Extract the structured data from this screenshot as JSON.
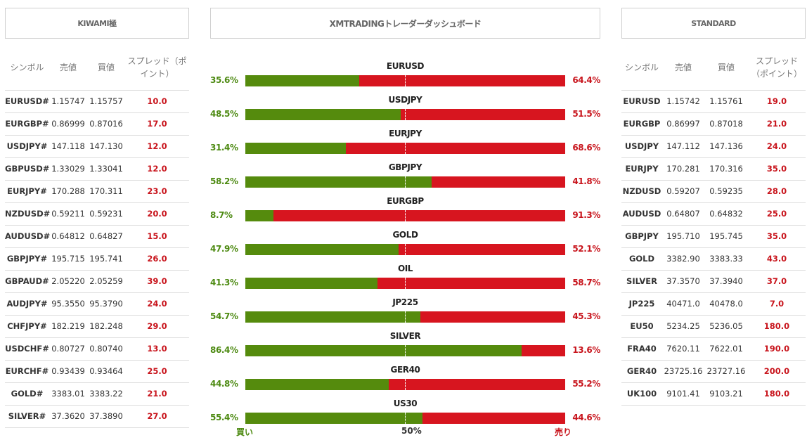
{
  "headers": {
    "left": "KIWAMI極",
    "center": "XMTRADINGトレーダーダッシュボード",
    "right": "STANDARD"
  },
  "kiwami": {
    "columns": [
      "シンボル",
      "売値",
      "買値",
      "スプレッド（ポイント）"
    ],
    "rows": [
      {
        "symbol": "EURUSD#",
        "bid": "1.15747",
        "ask": "1.15757",
        "spread": "10.0"
      },
      {
        "symbol": "EURGBP#",
        "bid": "0.86999",
        "ask": "0.87016",
        "spread": "17.0"
      },
      {
        "symbol": "USDJPY#",
        "bid": "147.118",
        "ask": "147.130",
        "spread": "12.0"
      },
      {
        "symbol": "GBPUSD#",
        "bid": "1.33029",
        "ask": "1.33041",
        "spread": "12.0"
      },
      {
        "symbol": "EURJPY#",
        "bid": "170.288",
        "ask": "170.311",
        "spread": "23.0"
      },
      {
        "symbol": "NZDUSD#",
        "bid": "0.59211",
        "ask": "0.59231",
        "spread": "20.0"
      },
      {
        "symbol": "AUDUSD#",
        "bid": "0.64812",
        "ask": "0.64827",
        "spread": "15.0"
      },
      {
        "symbol": "GBPJPY#",
        "bid": "195.715",
        "ask": "195.741",
        "spread": "26.0"
      },
      {
        "symbol": "GBPAUD#",
        "bid": "2.05220",
        "ask": "2.05259",
        "spread": "39.0"
      },
      {
        "symbol": "AUDJPY#",
        "bid": "95.3550",
        "ask": "95.3790",
        "spread": "24.0"
      },
      {
        "symbol": "CHFJPY#",
        "bid": "182.219",
        "ask": "182.248",
        "spread": "29.0"
      },
      {
        "symbol": "USDCHF#",
        "bid": "0.80727",
        "ask": "0.80740",
        "spread": "13.0"
      },
      {
        "symbol": "EURCHF#",
        "bid": "0.93439",
        "ask": "0.93464",
        "spread": "25.0"
      },
      {
        "symbol": "GOLD#",
        "bid": "3383.01",
        "ask": "3383.22",
        "spread": "21.0"
      },
      {
        "symbol": "SILVER#",
        "bid": "37.3620",
        "ask": "37.3890",
        "spread": "27.0"
      }
    ]
  },
  "standard": {
    "columns": [
      "シンボル",
      "売値",
      "買値",
      "スプレッド（ポイント）"
    ],
    "rows": [
      {
        "symbol": "EURUSD",
        "bid": "1.15742",
        "ask": "1.15761",
        "spread": "19.0"
      },
      {
        "symbol": "EURGBP",
        "bid": "0.86997",
        "ask": "0.87018",
        "spread": "21.0"
      },
      {
        "symbol": "USDJPY",
        "bid": "147.112",
        "ask": "147.136",
        "spread": "24.0"
      },
      {
        "symbol": "EURJPY",
        "bid": "170.281",
        "ask": "170.316",
        "spread": "35.0"
      },
      {
        "symbol": "NZDUSD",
        "bid": "0.59207",
        "ask": "0.59235",
        "spread": "28.0"
      },
      {
        "symbol": "AUDUSD",
        "bid": "0.64807",
        "ask": "0.64832",
        "spread": "25.0"
      },
      {
        "symbol": "GBPJPY",
        "bid": "195.710",
        "ask": "195.745",
        "spread": "35.0"
      },
      {
        "symbol": "GOLD",
        "bid": "3382.90",
        "ask": "3383.33",
        "spread": "43.0"
      },
      {
        "symbol": "SILVER",
        "bid": "37.3570",
        "ask": "37.3940",
        "spread": "37.0"
      },
      {
        "symbol": "JP225",
        "bid": "40471.0",
        "ask": "40478.0",
        "spread": "7.0"
      },
      {
        "symbol": "EU50",
        "bid": "5234.25",
        "ask": "5236.05",
        "spread": "180.0"
      },
      {
        "symbol": "FRA40",
        "bid": "7620.11",
        "ask": "7622.01",
        "spread": "190.0"
      },
      {
        "symbol": "GER40",
        "bid": "23725.16",
        "ask": "23727.16",
        "spread": "200.0"
      },
      {
        "symbol": "UK100",
        "bid": "9101.41",
        "ask": "9103.21",
        "spread": "180.0"
      }
    ]
  },
  "sentiment": [
    {
      "symbol": "EURUSD",
      "buy": "35.6%",
      "sell": "64.4%",
      "buy_value": 35.6
    },
    {
      "symbol": "USDJPY",
      "buy": "48.5%",
      "sell": "51.5%",
      "buy_value": 48.5
    },
    {
      "symbol": "EURJPY",
      "buy": "31.4%",
      "sell": "68.6%",
      "buy_value": 31.4
    },
    {
      "symbol": "GBPJPY",
      "buy": "58.2%",
      "sell": "41.8%",
      "buy_value": 58.2
    },
    {
      "symbol": "EURGBP",
      "buy": "8.7%",
      "sell": "91.3%",
      "buy_value": 8.7
    },
    {
      "symbol": "GOLD",
      "buy": "47.9%",
      "sell": "52.1%",
      "buy_value": 47.9
    },
    {
      "symbol": "OIL",
      "buy": "41.3%",
      "sell": "58.7%",
      "buy_value": 41.3
    },
    {
      "symbol": "JP225",
      "buy": "54.7%",
      "sell": "45.3%",
      "buy_value": 54.7
    },
    {
      "symbol": "SILVER",
      "buy": "86.4%",
      "sell": "13.6%",
      "buy_value": 86.4
    },
    {
      "symbol": "GER40",
      "buy": "44.8%",
      "sell": "55.2%",
      "buy_value": 44.8
    },
    {
      "symbol": "US30",
      "buy": "55.4%",
      "sell": "44.6%",
      "buy_value": 55.4
    }
  ],
  "footer": {
    "buy": "買い",
    "mid": "50%",
    "sell": "売り"
  },
  "colors": {
    "buy": "#558b0d",
    "sell": "#d7151f"
  }
}
